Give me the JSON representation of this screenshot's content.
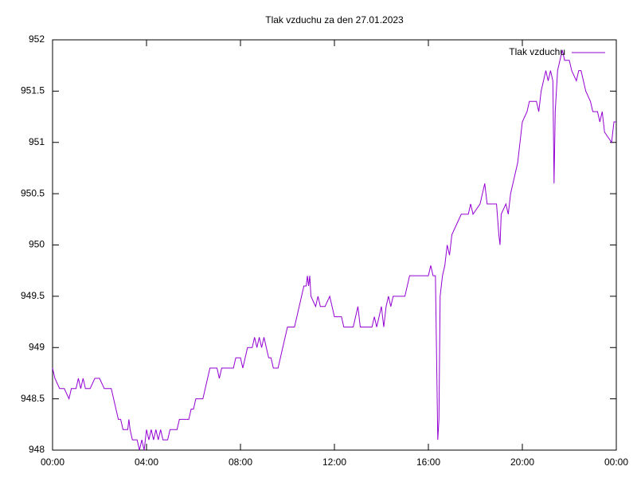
{
  "chart_data": {
    "type": "line",
    "title": "Tlak vzduchu za den 27.01.2023",
    "xlim": [
      0,
      24
    ],
    "xticks": [
      {
        "value": 0,
        "label": "00:00"
      },
      {
        "value": 4,
        "label": "04:00"
      },
      {
        "value": 8,
        "label": "08:00"
      },
      {
        "value": 12,
        "label": "12:00"
      },
      {
        "value": 16,
        "label": "16:00"
      },
      {
        "value": 20,
        "label": "20:00"
      },
      {
        "value": 24,
        "label": "00:00"
      }
    ],
    "ylim": [
      948,
      952
    ],
    "yticks": [
      948,
      948.5,
      949,
      949.5,
      950,
      950.5,
      951,
      951.5,
      952
    ],
    "legend": "top-right",
    "series": [
      {
        "name": "Tlak vzduchu",
        "color": "#9400d3",
        "x": [
          0.0,
          0.1,
          0.3,
          0.5,
          0.7,
          0.8,
          1.0,
          1.1,
          1.2,
          1.3,
          1.4,
          1.6,
          1.8,
          2.0,
          2.2,
          2.5,
          2.6,
          2.7,
          2.8,
          2.9,
          3.0,
          3.2,
          3.25,
          3.3,
          3.4,
          3.6,
          3.7,
          3.8,
          3.9,
          4.0,
          4.1,
          4.2,
          4.3,
          4.4,
          4.5,
          4.6,
          4.7,
          4.9,
          5.0,
          5.3,
          5.4,
          5.8,
          5.9,
          6.0,
          6.1,
          6.4,
          6.5,
          6.6,
          6.7,
          7.0,
          7.1,
          7.2,
          7.7,
          7.8,
          8.0,
          8.1,
          8.2,
          8.3,
          8.5,
          8.6,
          8.7,
          8.8,
          8.9,
          9.0,
          9.1,
          9.2,
          9.3,
          9.4,
          9.6,
          9.7,
          9.8,
          9.9,
          10.0,
          10.3,
          10.4,
          10.5,
          10.6,
          10.7,
          10.8,
          10.85,
          10.9,
          10.95,
          11.0,
          11.2,
          11.3,
          11.4,
          11.6,
          11.8,
          11.9,
          12.0,
          12.3,
          12.4,
          12.8,
          12.9,
          13.0,
          13.1,
          13.6,
          13.7,
          13.8,
          13.9,
          14.0,
          14.1,
          14.2,
          14.3,
          14.4,
          14.5,
          15.0,
          15.1,
          15.2,
          16.0,
          16.1,
          16.2,
          16.3,
          16.4,
          16.45,
          16.5,
          16.6,
          16.7,
          16.8,
          16.9,
          17.0,
          17.2,
          17.4,
          17.7,
          17.8,
          17.9,
          18.2,
          18.3,
          18.4,
          18.5,
          18.9,
          19.0,
          19.05,
          19.1,
          19.3,
          19.4,
          19.5,
          19.6,
          19.7,
          19.8,
          19.9,
          20.0,
          20.2,
          20.3,
          20.6,
          20.7,
          20.8,
          20.9,
          21.0,
          21.1,
          21.2,
          21.3,
          21.35,
          21.4,
          21.5,
          21.6,
          21.7,
          21.8,
          22.0,
          22.1,
          22.3,
          22.4,
          22.5,
          22.6,
          22.7,
          22.9,
          23.0,
          23.2,
          23.3,
          23.4,
          23.5,
          23.8,
          23.9,
          24.0
        ],
        "values": [
          948.8,
          948.7,
          948.6,
          948.6,
          948.5,
          948.6,
          948.6,
          948.7,
          948.6,
          948.7,
          948.6,
          948.6,
          948.7,
          948.7,
          948.6,
          948.6,
          948.5,
          948.4,
          948.3,
          948.3,
          948.2,
          948.2,
          948.3,
          948.2,
          948.1,
          948.1,
          948.0,
          948.1,
          948.0,
          948.2,
          948.1,
          948.2,
          948.1,
          948.2,
          948.1,
          948.2,
          948.1,
          948.1,
          948.2,
          948.2,
          948.3,
          948.3,
          948.4,
          948.4,
          948.5,
          948.5,
          948.6,
          948.7,
          948.8,
          948.8,
          948.7,
          948.8,
          948.8,
          948.9,
          948.9,
          948.8,
          948.9,
          949.0,
          949.0,
          949.1,
          949.0,
          949.1,
          949.0,
          949.1,
          949.0,
          948.9,
          948.9,
          948.8,
          948.8,
          948.9,
          949.0,
          949.1,
          949.2,
          949.2,
          949.3,
          949.4,
          949.5,
          949.6,
          949.6,
          949.7,
          949.6,
          949.7,
          949.5,
          949.4,
          949.5,
          949.4,
          949.4,
          949.5,
          949.4,
          949.3,
          949.3,
          949.2,
          949.2,
          949.3,
          949.4,
          949.2,
          949.2,
          949.3,
          949.2,
          949.3,
          949.4,
          949.2,
          949.4,
          949.5,
          949.4,
          949.5,
          949.5,
          949.6,
          949.7,
          949.7,
          949.8,
          949.7,
          949.7,
          948.1,
          948.3,
          949.5,
          949.7,
          949.8,
          950.0,
          949.9,
          950.1,
          950.2,
          950.3,
          950.3,
          950.4,
          950.3,
          950.4,
          950.5,
          950.6,
          950.4,
          950.4,
          950.1,
          950.0,
          950.3,
          950.4,
          950.3,
          950.5,
          950.6,
          950.7,
          950.8,
          951.0,
          951.2,
          951.3,
          951.4,
          951.4,
          951.3,
          951.5,
          951.6,
          951.7,
          951.6,
          951.7,
          951.6,
          950.6,
          951.3,
          951.7,
          951.8,
          951.9,
          951.8,
          951.8,
          951.7,
          951.6,
          951.7,
          951.7,
          951.6,
          951.5,
          951.4,
          951.3,
          951.3,
          951.2,
          951.3,
          951.1,
          951.0,
          951.2,
          951.2
        ]
      }
    ]
  }
}
